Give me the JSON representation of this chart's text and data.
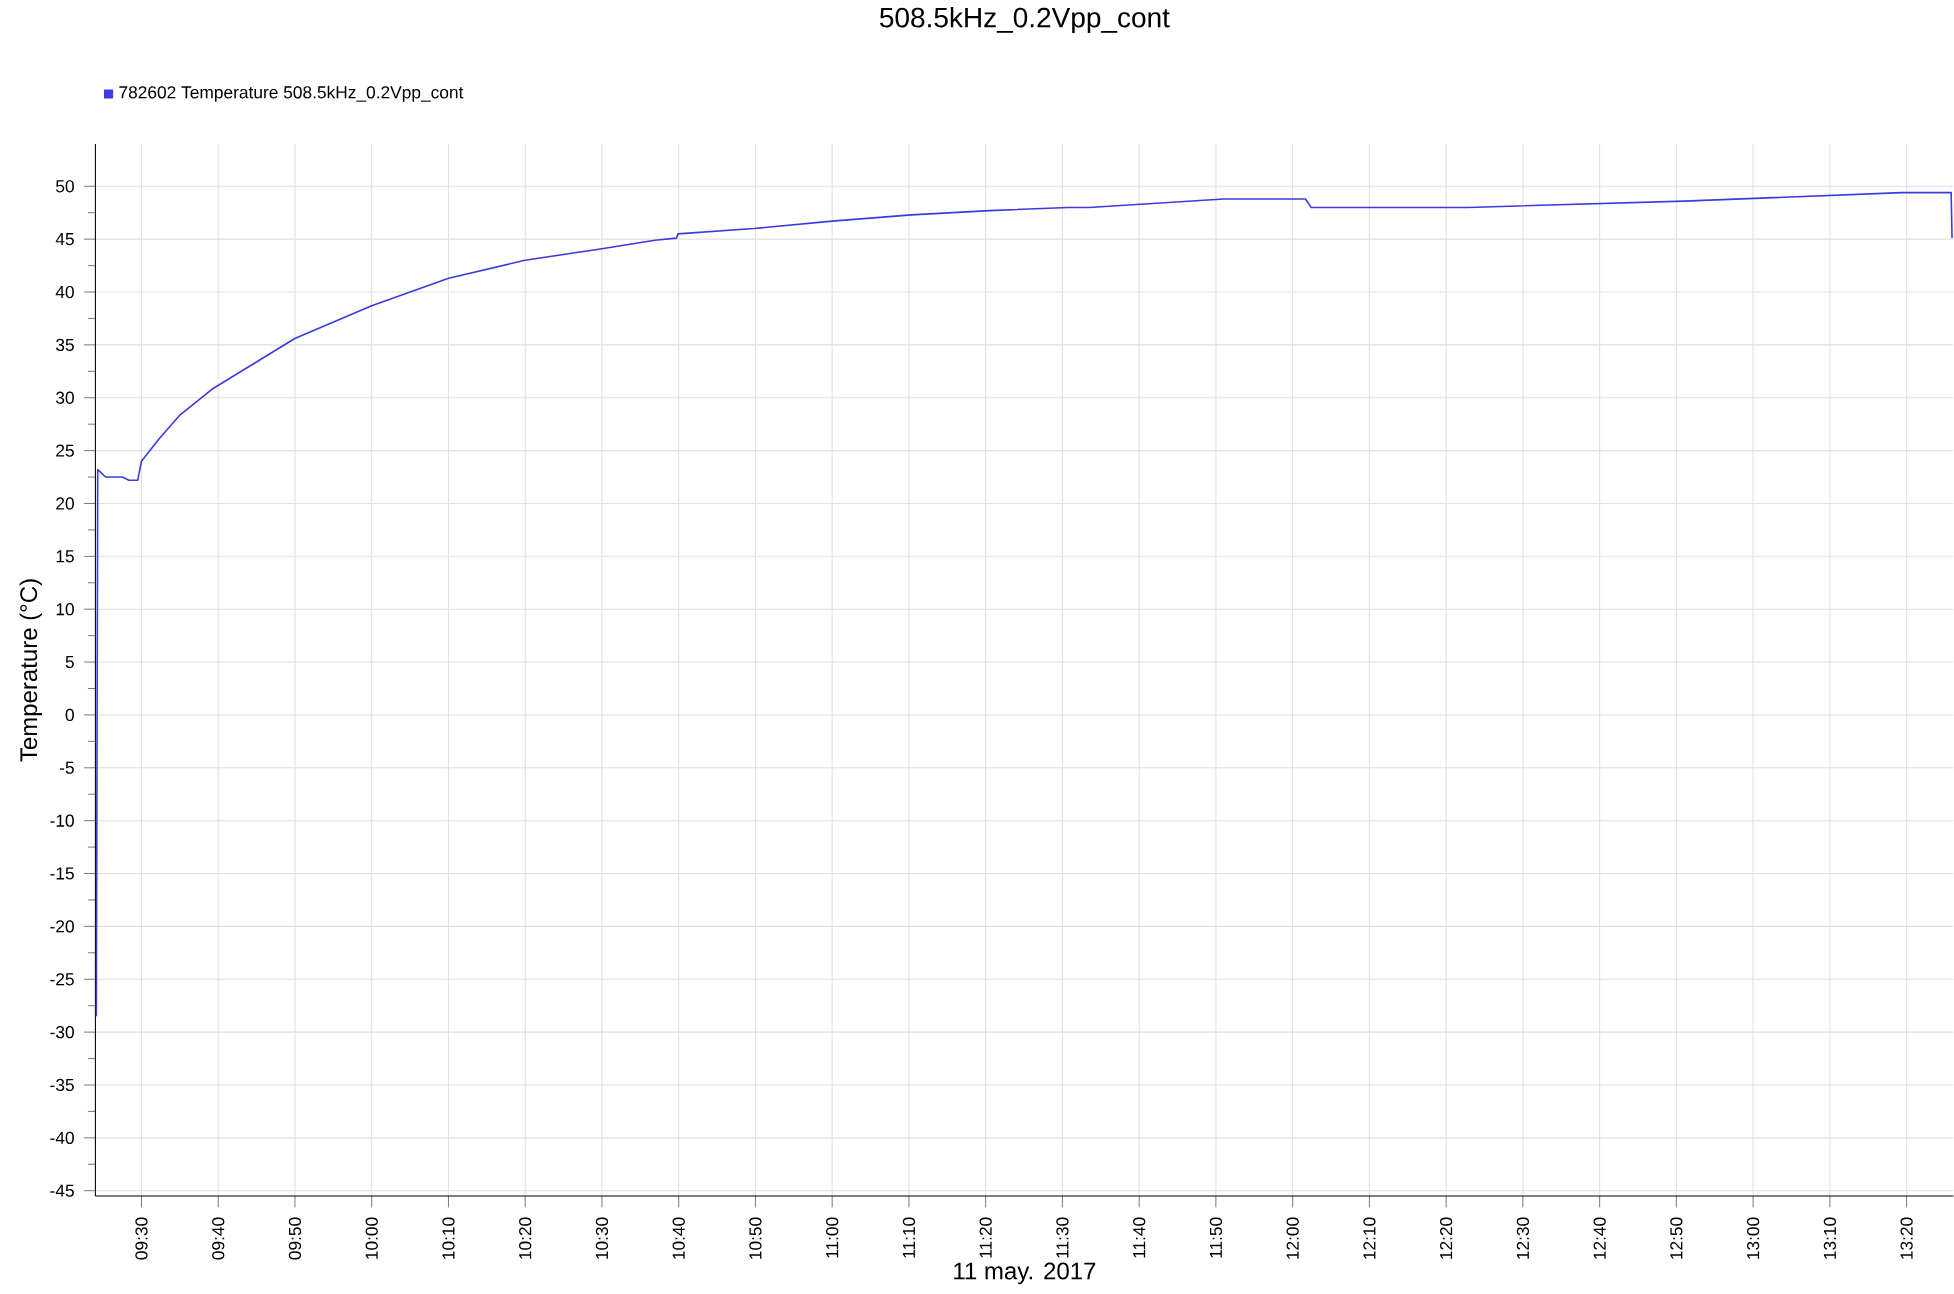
{
  "chart_data": {
    "type": "line",
    "title": "508.5kHz_0.2Vpp_cont",
    "xlabel": "11 may. 2017",
    "ylabel": "Temperature (°C)",
    "x": [
      9.402,
      9.405,
      9.422,
      9.458,
      9.473,
      9.492,
      9.5,
      9.538,
      9.582,
      9.653,
      9.833,
      10.0,
      10.167,
      10.333,
      10.5,
      10.615,
      10.662,
      10.665,
      10.83,
      11.0,
      11.172,
      11.342,
      11.512,
      11.558,
      11.85,
      12.028,
      12.04,
      12.38,
      12.85,
      13.322,
      13.43,
      13.432
    ],
    "series": [
      {
        "name": "782602  Temperature 508.5kHz_0.2Vpp_cont",
        "color": "#3b3bdf",
        "values": [
          -28.5,
          23.2,
          22.5,
          22.5,
          22.2,
          22.2,
          24.0,
          26.1,
          28.3,
          30.8,
          35.6,
          38.7,
          41.3,
          43.0,
          44.1,
          44.9,
          45.1,
          45.5,
          46.0,
          46.7,
          47.3,
          47.7,
          48.0,
          48.0,
          48.8,
          48.8,
          48.0,
          48.0,
          48.6,
          49.4,
          49.4,
          45.1
        ]
      }
    ],
    "xlim": [
      9.4,
      13.435
    ],
    "ylim": [
      -45.5,
      54
    ],
    "xticks": [
      {
        "value": 9.5,
        "label": "09:30"
      },
      {
        "value": 9.6667,
        "label": "09:40"
      },
      {
        "value": 9.8333,
        "label": "09:50"
      },
      {
        "value": 10.0,
        "label": "10:00"
      },
      {
        "value": 10.1667,
        "label": "10:10"
      },
      {
        "value": 10.3333,
        "label": "10:20"
      },
      {
        "value": 10.5,
        "label": "10:30"
      },
      {
        "value": 10.6667,
        "label": "10:40"
      },
      {
        "value": 10.8333,
        "label": "10:50"
      },
      {
        "value": 11.0,
        "label": "11:00"
      },
      {
        "value": 11.1667,
        "label": "11:10"
      },
      {
        "value": 11.3333,
        "label": "11:20"
      },
      {
        "value": 11.5,
        "label": "11:30"
      },
      {
        "value": 11.6667,
        "label": "11:40"
      },
      {
        "value": 11.8333,
        "label": "11:50"
      },
      {
        "value": 12.0,
        "label": "12:00"
      },
      {
        "value": 12.1667,
        "label": "12:10"
      },
      {
        "value": 12.3333,
        "label": "12:20"
      },
      {
        "value": 12.5,
        "label": "12:30"
      },
      {
        "value": 12.6667,
        "label": "12:40"
      },
      {
        "value": 12.8333,
        "label": "12:50"
      },
      {
        "value": 13.0,
        "label": "13:00"
      },
      {
        "value": 13.1667,
        "label": "13:10"
      },
      {
        "value": 13.3333,
        "label": "13:20"
      }
    ],
    "yticks": [
      -45,
      -40,
      -35,
      -30,
      -25,
      -20,
      -15,
      -10,
      -5,
      0,
      5,
      10,
      15,
      20,
      25,
      30,
      35,
      40,
      45,
      50
    ],
    "grid": true,
    "legend": "top left"
  }
}
